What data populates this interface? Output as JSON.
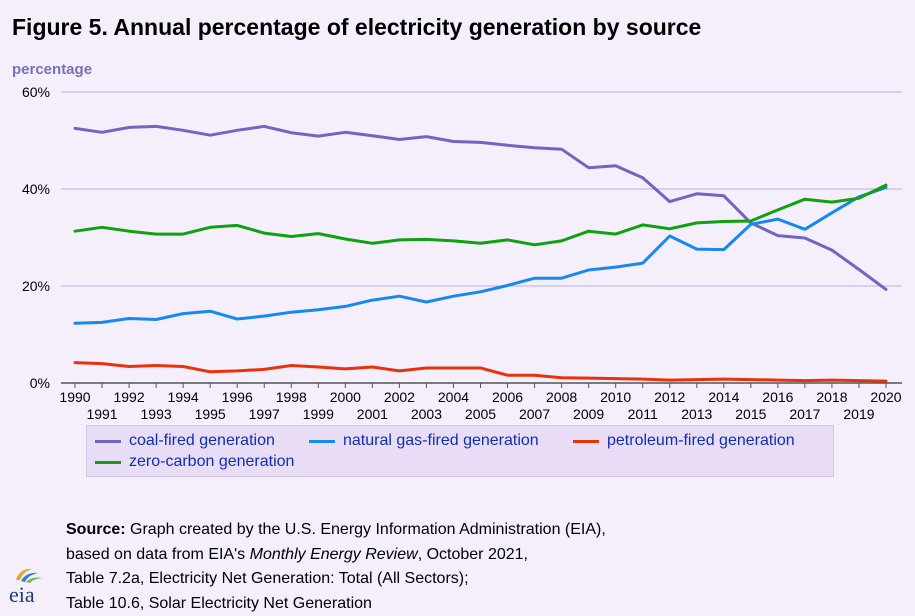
{
  "title": "Figure 5. Annual percentage of electricity generation by source",
  "ylabel": "percentage",
  "source": {
    "label": "Source:",
    "line1_rest": " Graph created by the U.S. Energy Information Administration (EIA),",
    "line2_pre": "based on data from EIA's ",
    "line2_italic": "Monthly Energy Review",
    "line2_post": ", October 2021,",
    "line3": "Table 7.2a, Electricity Net Generation: Total (All Sectors);",
    "line4": "Table 10.6, Solar Electricity Net Generation"
  },
  "logo_text": "eia",
  "colors": {
    "coal": "#7065c0",
    "gas": "#1688f0",
    "petroleum": "#e8320a",
    "zero_carbon": "#11a00f",
    "grid": "#b8b0e0",
    "axis": "#555555"
  },
  "chart_data": {
    "type": "line",
    "x": [
      1990,
      1991,
      1992,
      1993,
      1994,
      1995,
      1996,
      1997,
      1998,
      1999,
      2000,
      2001,
      2002,
      2003,
      2004,
      2005,
      2006,
      2007,
      2008,
      2009,
      2010,
      2011,
      2012,
      2013,
      2014,
      2015,
      2016,
      2017,
      2018,
      2019,
      2020
    ],
    "x_tick_labels_upper": [
      "1990",
      "1992",
      "1994",
      "1996",
      "1998",
      "2000",
      "2002",
      "2004",
      "2006",
      "2008",
      "2010",
      "2012",
      "2014",
      "2016",
      "2018",
      "2020"
    ],
    "x_tick_labels_lower": [
      "1991",
      "1993",
      "1995",
      "1997",
      "1999",
      "2001",
      "2003",
      "2005",
      "2007",
      "2009",
      "2011",
      "2013",
      "2015",
      "2017",
      "2019"
    ],
    "y_ticks": [
      0,
      20,
      40,
      60
    ],
    "y_tick_labels": [
      "0%",
      "20%",
      "40%",
      "60%"
    ],
    "ylim": [
      0,
      60
    ],
    "ylabel": "percentage",
    "grid": true,
    "legend_position": "bottom",
    "series": [
      {
        "key": "coal",
        "name": "coal-fired generation",
        "values": [
          52.5,
          51.7,
          52.7,
          52.9,
          52.1,
          51.1,
          52.1,
          52.9,
          51.6,
          50.9,
          51.7,
          51.0,
          50.2,
          50.8,
          49.8,
          49.6,
          49.0,
          48.5,
          48.2,
          44.4,
          44.8,
          42.3,
          37.4,
          39.0,
          38.6,
          33.0,
          30.4,
          29.9,
          27.4,
          23.4,
          19.3
        ]
      },
      {
        "key": "gas",
        "name": "natural gas-fired generation",
        "values": [
          12.3,
          12.5,
          13.3,
          13.1,
          14.3,
          14.8,
          13.2,
          13.8,
          14.6,
          15.1,
          15.8,
          17.1,
          17.9,
          16.7,
          17.9,
          18.8,
          20.1,
          21.6,
          21.6,
          23.3,
          23.9,
          24.7,
          30.3,
          27.6,
          27.5,
          32.7,
          33.8,
          31.7,
          35.1,
          38.4,
          40.3
        ]
      },
      {
        "key": "petroleum",
        "name": "petroleum-fired generation",
        "values": [
          4.2,
          4.0,
          3.4,
          3.6,
          3.4,
          2.3,
          2.5,
          2.8,
          3.6,
          3.3,
          2.9,
          3.3,
          2.5,
          3.1,
          3.1,
          3.1,
          1.6,
          1.6,
          1.1,
          1.0,
          0.9,
          0.8,
          0.6,
          0.7,
          0.8,
          0.7,
          0.6,
          0.5,
          0.6,
          0.5,
          0.4
        ]
      },
      {
        "key": "zero_carbon",
        "name": "zero-carbon generation",
        "values": [
          31.3,
          32.1,
          31.3,
          30.7,
          30.7,
          32.1,
          32.5,
          30.9,
          30.2,
          30.8,
          29.7,
          28.8,
          29.5,
          29.6,
          29.3,
          28.8,
          29.5,
          28.5,
          29.3,
          31.3,
          30.7,
          32.6,
          31.8,
          33.0,
          33.3,
          33.4,
          35.7,
          37.9,
          37.3,
          38.1,
          40.8
        ]
      }
    ]
  },
  "legend": [
    {
      "key": "coal",
      "label": "coal-fired generation"
    },
    {
      "key": "gas",
      "label": "natural gas-fired generation"
    },
    {
      "key": "petroleum",
      "label": "petroleum-fired generation"
    },
    {
      "key": "zero_carbon",
      "label": "zero-carbon generation"
    }
  ]
}
